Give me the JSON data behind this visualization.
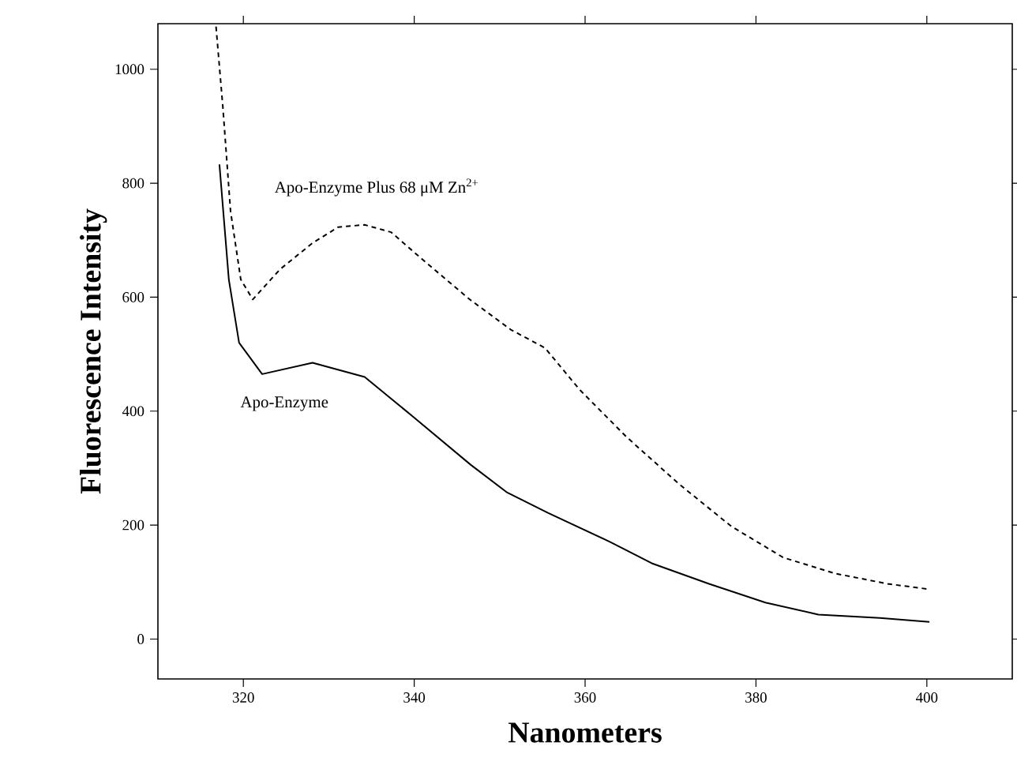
{
  "chart_data": {
    "type": "line",
    "xlabel": "Nanometers",
    "ylabel": "Fluorescence Intensity",
    "xlim": [
      310,
      410
    ],
    "ylim": [
      -70,
      1080
    ],
    "xticks": [
      320,
      340,
      360,
      380,
      400
    ],
    "yticks": [
      0,
      200,
      400,
      600,
      800,
      1000
    ],
    "grid": false,
    "legend": false,
    "marker": "none",
    "series": [
      {
        "name": "Apo-Enzyme",
        "color": "#000000",
        "line_style": "solid",
        "x": [
          317.2,
          318.3,
          319.5,
          322.2,
          328.1,
          334.2,
          339.8,
          346.6,
          350.8,
          355.7,
          363,
          367.8,
          374.5,
          381.1,
          387.3,
          394.5,
          400.3
        ],
        "values": [
          833,
          631,
          520,
          465,
          485,
          460,
          391,
          306,
          258,
          221,
          170,
          133,
          97,
          64,
          43,
          37,
          30
        ]
      },
      {
        "name": "Apo-Enzyme Plus 68 μM Zn$^{2+}$",
        "color": "#000000",
        "line_style": "dashed",
        "x": [
          316.8,
          317.6,
          318.5,
          319.7,
          321.1,
          324.3,
          328.1,
          331.1,
          334.2,
          337.3,
          340.9,
          346.5,
          351.3,
          355.3,
          359.4,
          364.9,
          371,
          377.1,
          383.2,
          389.3,
          395.4,
          400
        ],
        "values": [
          1075,
          934,
          751,
          631,
          596,
          649,
          695,
          723,
          727,
          714,
          667,
          596,
          543,
          511,
          437,
          354,
          272,
          198,
          143,
          115,
          97,
          88
        ]
      }
    ]
  }
}
